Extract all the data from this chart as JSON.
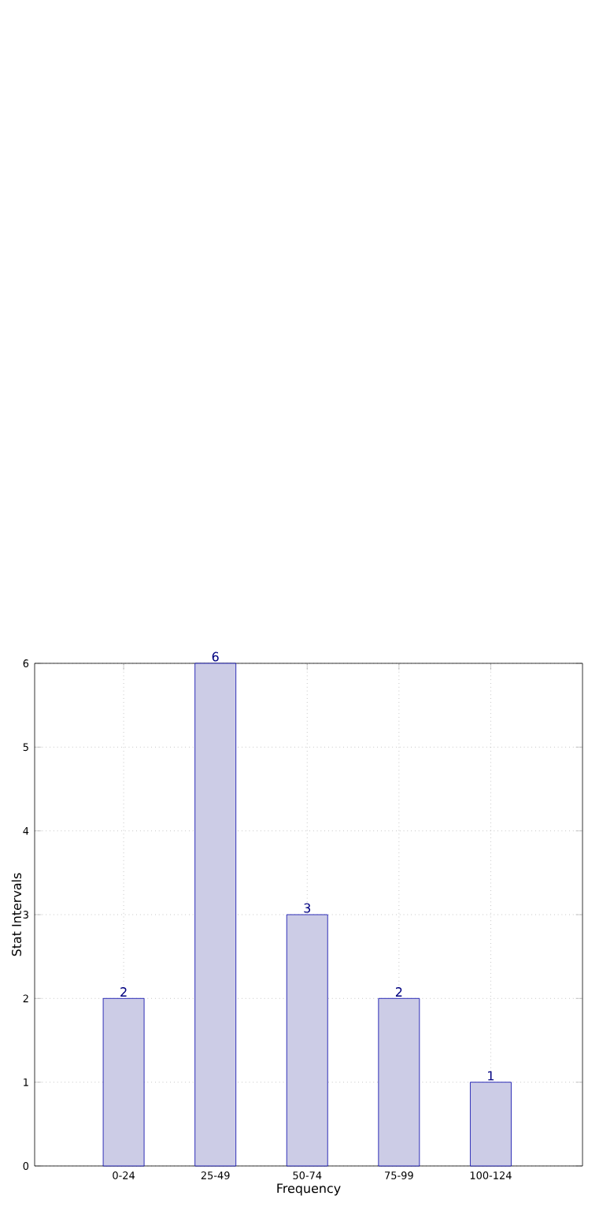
{
  "chart_data": {
    "type": "bar",
    "xlabel": "Frequency",
    "ylabel": "Stat Intervals",
    "categories": [
      "0-24",
      "25-49",
      "50-74",
      "75-99",
      "100-124"
    ],
    "values": [
      2,
      6,
      3,
      2,
      1
    ],
    "value_labels": [
      "2",
      "6",
      "3",
      "2",
      "1"
    ],
    "color": "#cccce6",
    "ylim": [
      0,
      6
    ],
    "yticks": [
      0,
      1,
      2,
      3,
      4,
      5,
      6
    ],
    "grid": true
  }
}
